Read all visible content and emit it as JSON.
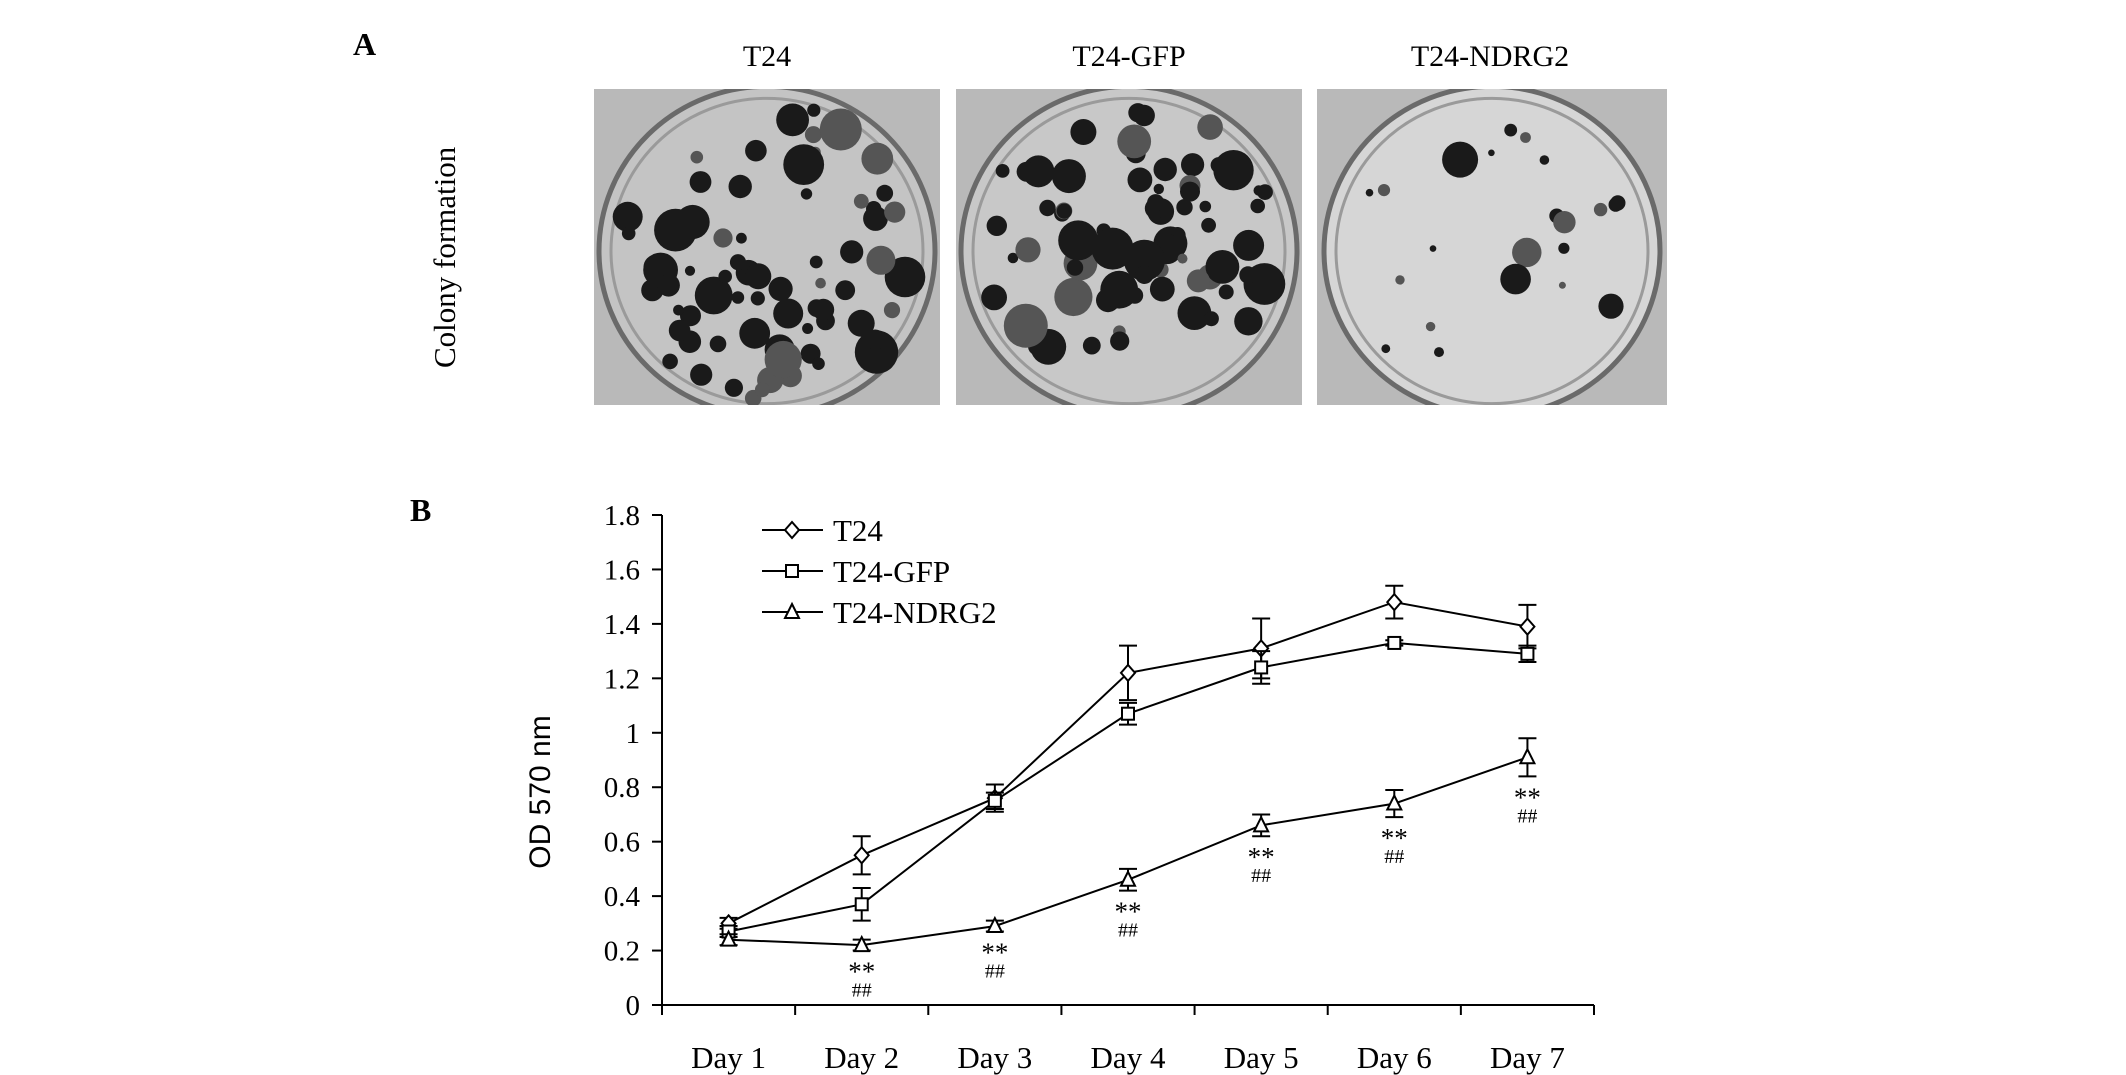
{
  "panelA": {
    "letter": "A",
    "row_label": "Colony formation",
    "columns": [
      {
        "label": "T24",
        "tone": "#c4c4c4",
        "density": "high"
      },
      {
        "label": "T24-GFP",
        "tone": "#c8c8c8",
        "density": "high"
      },
      {
        "label": "T24-NDRG2",
        "tone": "#d6d6d6",
        "density": "low"
      }
    ]
  },
  "panelB": {
    "letter": "B"
  },
  "chart_data": {
    "type": "line",
    "title": "",
    "xlabel": "",
    "ylabel": "OD 570 nm",
    "categories": [
      "Day 1",
      "Day 2",
      "Day 3",
      "Day 4",
      "Day 5",
      "Day 6",
      "Day 7"
    ],
    "ylim": [
      0,
      1.8
    ],
    "yticks": [
      "0",
      "0.2",
      "0.4",
      "0.6",
      "0.8",
      "1",
      "1.2",
      "1.4",
      "1.6",
      "1.8"
    ],
    "grid": false,
    "legend_position": "top-left",
    "series": [
      {
        "name": "T24",
        "marker": "diamond",
        "values": [
          0.3,
          0.55,
          0.76,
          1.22,
          1.31,
          1.48,
          1.39
        ],
        "errors": [
          0.02,
          0.07,
          0.05,
          0.1,
          0.11,
          0.06,
          0.08
        ]
      },
      {
        "name": "T24-GFP",
        "marker": "square",
        "values": [
          0.27,
          0.37,
          0.75,
          1.07,
          1.24,
          1.33,
          1.29
        ],
        "errors": [
          0.02,
          0.06,
          0.03,
          0.04,
          0.06,
          0.01,
          0.03
        ]
      },
      {
        "name": "T24-NDRG2",
        "marker": "triangle",
        "values": [
          0.24,
          0.22,
          0.29,
          0.46,
          0.66,
          0.74,
          0.91
        ],
        "errors": [
          0.02,
          0.02,
          0.02,
          0.04,
          0.04,
          0.05,
          0.07
        ]
      }
    ],
    "annotations": [
      {
        "x": "Day 2",
        "text1": "**",
        "text2": "##"
      },
      {
        "x": "Day 3",
        "text1": "**",
        "text2": "##"
      },
      {
        "x": "Day 4",
        "text1": "**",
        "text2": "##"
      },
      {
        "x": "Day 5",
        "text1": "**",
        "text2": "##"
      },
      {
        "x": "Day 6",
        "text1": "**",
        "text2": "##"
      },
      {
        "x": "Day 7",
        "text1": "**",
        "text2": "##"
      }
    ]
  }
}
